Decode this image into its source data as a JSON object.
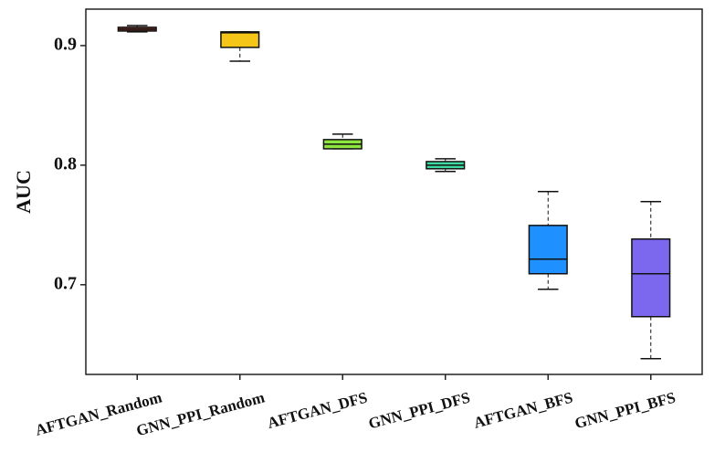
{
  "chart_data": {
    "type": "box",
    "y_label": "AUC",
    "categories": [
      "AFTGAN_Random",
      "GNN_PPI_Random",
      "AFTGAN_DFS",
      "GNN_PPI_DFS",
      "AFTGAN_BFS",
      "GNN_PPI_BFS"
    ],
    "boxes": [
      {
        "min": 0.9115,
        "q1": 0.9122,
        "median": 0.9137,
        "q3": 0.9153,
        "max": 0.9168,
        "color": "#a0432f"
      },
      {
        "min": 0.887,
        "q1": 0.8985,
        "median": 0.9107,
        "q3": 0.9115,
        "max": 0.9115,
        "color": "#f5c518"
      },
      {
        "min": 0.8137,
        "q1": 0.8137,
        "median": 0.8176,
        "q3": 0.8214,
        "max": 0.826,
        "color": "#8ee53f"
      },
      {
        "min": 0.7947,
        "q1": 0.797,
        "median": 0.8,
        "q3": 0.803,
        "max": 0.8053,
        "color": "#3ed9a0"
      },
      {
        "min": 0.6962,
        "q1": 0.7092,
        "median": 0.7214,
        "q3": 0.7496,
        "max": 0.7779,
        "color": "#1e90ff"
      },
      {
        "min": 0.6382,
        "q1": 0.6733,
        "median": 0.7092,
        "q3": 0.7382,
        "max": 0.7695,
        "color": "#7b68ee"
      }
    ],
    "ylim": [
      0.625,
      0.9305
    ],
    "yticks": [
      0.7,
      0.8,
      0.9
    ]
  }
}
